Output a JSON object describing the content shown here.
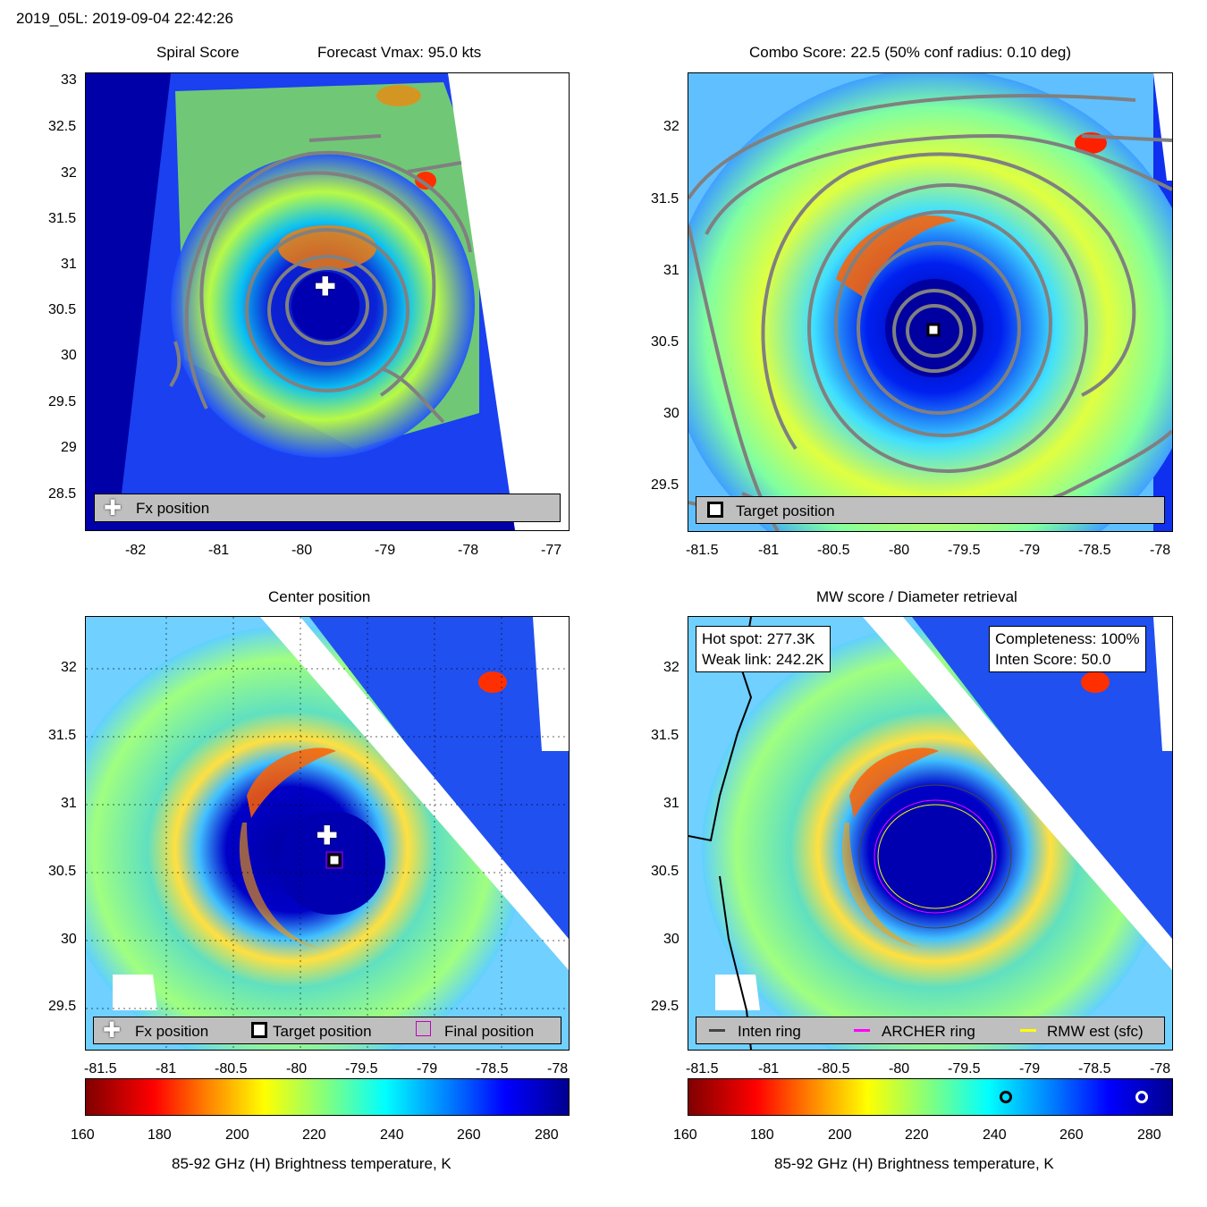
{
  "header": {
    "title": "2019_05L: 2019-09-04 22:42:26"
  },
  "panels": {
    "p1": {
      "title_left": "Spiral Score",
      "title_right": "Forecast Vmax: 95.0 kts",
      "xticks": [
        "-82",
        "-81",
        "-80",
        "-79",
        "-78",
        "-77"
      ],
      "yticks": [
        "33",
        "32.5",
        "32",
        "31.5",
        "31",
        "30.5",
        "30",
        "29.5",
        "29",
        "28.5"
      ],
      "legend": "Fx position"
    },
    "p2": {
      "title": "Combo Score: 22.5  (50% conf radius: 0.10 deg)",
      "xticks": [
        "-81.5",
        "-81",
        "-80.5",
        "-80",
        "-79.5",
        "-79",
        "-78.5",
        "-78"
      ],
      "yticks": [
        "32",
        "31.5",
        "31",
        "30.5",
        "30",
        "29.5"
      ],
      "legend": "Target position"
    },
    "p3": {
      "title": "Center position",
      "xticks": [
        "-81.5",
        "-81",
        "-80.5",
        "-80",
        "-79.5",
        "-79",
        "-78.5",
        "-78"
      ],
      "yticks": [
        "32",
        "31.5",
        "31",
        "30.5",
        "30",
        "29.5"
      ],
      "legend": {
        "fx": "Fx position",
        "target": "Target position",
        "final": "Final position"
      }
    },
    "p4": {
      "title": "MW score / Diameter retrieval",
      "xticks": [
        "-81.5",
        "-81",
        "-80.5",
        "-80",
        "-79.5",
        "-79",
        "-78.5",
        "-78"
      ],
      "yticks": [
        "32",
        "31.5",
        "31",
        "30.5",
        "30",
        "29.5"
      ],
      "info_left": {
        "hot": "Hot spot: 277.3K",
        "weak": "Weak link: 242.2K"
      },
      "info_right": {
        "complete": "Completeness: 100%",
        "inten": "Inten Score: 50.0"
      },
      "legend": {
        "inten": "Inten ring",
        "archer": "ARCHER ring",
        "rmw": "RMW est (sfc)"
      }
    }
  },
  "colorbar": {
    "ticks": [
      "160",
      "180",
      "200",
      "220",
      "240",
      "260",
      "280"
    ],
    "label": "85-92 GHz (H) Brightness temperature, K",
    "range": [
      160,
      285
    ]
  },
  "colors": {
    "ring_inten": "#444444",
    "ring_archer": "#ff00ff",
    "ring_rmw": "#ffff00"
  }
}
